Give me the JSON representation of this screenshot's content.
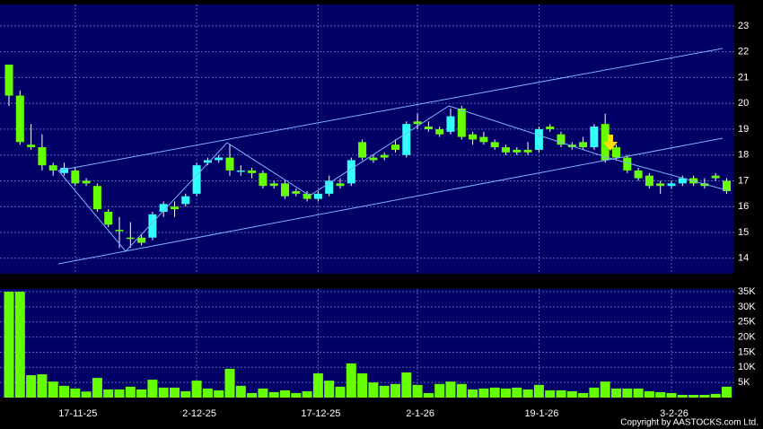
{
  "chart_data": [
    {
      "type": "candlestick",
      "up_color": "#33ffff",
      "down_color": "#66ff00",
      "open": [
        21.5,
        20.3,
        18.4,
        18.3,
        17.6,
        17.3,
        17.4,
        17.0,
        16.8,
        15.8,
        15.1,
        14.8,
        14.8,
        14.8,
        15.8,
        16.0,
        16.1,
        16.5,
        17.7,
        17.8,
        17.9,
        17.4,
        17.4,
        17.3,
        16.9,
        16.9,
        16.6,
        16.5,
        16.3,
        16.5,
        16.9,
        16.9,
        18.5,
        17.9,
        18.0,
        18.4,
        18.0,
        19.3,
        19.1,
        19.0,
        18.9,
        19.8,
        18.8,
        18.7,
        18.5,
        18.3,
        18.2,
        18.2,
        18.2,
        19.1,
        18.8,
        18.4,
        18.5,
        18.3,
        19.2,
        18.3,
        17.9,
        17.4,
        17.2,
        16.9,
        16.8,
        16.9,
        17.1,
        16.9,
        17.2,
        17.0
      ],
      "high": [
        21.5,
        20.5,
        19.2,
        18.8,
        17.7,
        17.7,
        17.5,
        17.1,
        16.9,
        15.9,
        15.6,
        15.4,
        14.9,
        15.8,
        16.2,
        16.2,
        16.5,
        17.7,
        17.9,
        18.0,
        18.4,
        17.6,
        17.5,
        17.4,
        17.0,
        17.0,
        16.7,
        16.6,
        16.6,
        17.2,
        17.1,
        17.9,
        18.6,
        18.0,
        18.1,
        18.6,
        19.3,
        19.6,
        19.3,
        19.1,
        19.8,
        19.9,
        18.9,
        18.9,
        18.6,
        18.4,
        18.3,
        18.5,
        19.1,
        19.2,
        18.9,
        18.5,
        18.7,
        19.2,
        19.6,
        18.4,
        18.0,
        17.5,
        17.3,
        17.0,
        17.0,
        17.2,
        17.2,
        17.1,
        17.3,
        17.1
      ],
      "low": [
        19.9,
        18.4,
        18.2,
        17.4,
        17.2,
        17.2,
        16.8,
        16.8,
        15.8,
        15.2,
        14.4,
        14.4,
        14.5,
        14.7,
        15.6,
        15.6,
        16.0,
        16.4,
        17.6,
        17.7,
        17.2,
        17.2,
        17.1,
        16.7,
        16.7,
        16.3,
        16.4,
        16.2,
        16.2,
        16.4,
        16.7,
        16.8,
        17.8,
        17.7,
        17.8,
        18.1,
        17.9,
        19.0,
        18.9,
        18.7,
        18.8,
        18.6,
        18.4,
        18.4,
        18.2,
        18.0,
        18.0,
        18.0,
        18.1,
        18.9,
        18.3,
        18.2,
        18.2,
        18.2,
        17.7,
        17.8,
        17.3,
        17.0,
        16.7,
        16.5,
        16.7,
        16.8,
        16.8,
        16.7,
        17.0,
        16.5
      ],
      "close": [
        20.3,
        18.5,
        18.3,
        17.6,
        17.4,
        17.5,
        16.9,
        16.9,
        15.9,
        15.3,
        15.05,
        14.75,
        14.6,
        15.7,
        16.1,
        15.9,
        16.4,
        17.6,
        17.8,
        17.9,
        17.4,
        17.4,
        17.3,
        16.8,
        16.8,
        16.4,
        16.5,
        16.3,
        16.5,
        17.0,
        16.8,
        17.8,
        17.9,
        17.8,
        17.9,
        18.2,
        19.2,
        19.2,
        19.0,
        18.8,
        19.5,
        18.7,
        18.6,
        18.5,
        18.3,
        18.1,
        18.1,
        18.1,
        19.0,
        19.0,
        18.4,
        18.3,
        18.3,
        19.1,
        17.8,
        17.9,
        17.4,
        17.1,
        16.8,
        16.8,
        16.9,
        17.1,
        16.9,
        16.8,
        17.1,
        16.6
      ],
      "ylim": [
        13.4,
        23.83
      ],
      "yticks": [
        14,
        15,
        16,
        17,
        18,
        19,
        20,
        21,
        22,
        23
      ],
      "grid": true
    },
    {
      "type": "bar",
      "color": "#66ff00",
      "categories": [
        null,
        null,
        null,
        null,
        null,
        null,
        "17-11-25",
        null,
        null,
        null,
        null,
        null,
        null,
        null,
        null,
        null,
        null,
        "2-12-25",
        null,
        null,
        null,
        null,
        null,
        null,
        null,
        null,
        null,
        null,
        "17-12-25",
        null,
        null,
        null,
        null,
        null,
        null,
        null,
        null,
        "2-1-26",
        null,
        null,
        null,
        null,
        null,
        null,
        null,
        null,
        null,
        null,
        "19-1-26",
        null,
        null,
        null,
        null,
        null,
        null,
        null,
        null,
        null,
        null,
        null,
        "3-2-26",
        null,
        null,
        null,
        null,
        null
      ],
      "values": [
        35000,
        35000,
        7400,
        7700,
        5300,
        3900,
        3000,
        2000,
        6500,
        2700,
        2700,
        3600,
        2700,
        5900,
        3300,
        3300,
        2100,
        5600,
        3000,
        2400,
        9500,
        3900,
        1500,
        3000,
        1800,
        2400,
        1500,
        2100,
        8000,
        5600,
        3600,
        11300,
        8000,
        5000,
        3900,
        4500,
        8300,
        4200,
        1500,
        4500,
        5300,
        4500,
        2700,
        3000,
        3300,
        3000,
        3300,
        2700,
        4200,
        2400,
        2400,
        2100,
        1500,
        3300,
        5300,
        3000,
        3000,
        3000,
        2100,
        1800,
        1500,
        900,
        900,
        900,
        1200,
        3600
      ],
      "ylim": [
        0,
        35900
      ],
      "yticks": [
        {
          "value": 5000,
          "label": "5K"
        },
        {
          "value": 10000,
          "label": "10K"
        },
        {
          "value": 15000,
          "label": "15K"
        },
        {
          "value": 20000,
          "label": "20K"
        },
        {
          "value": 25000,
          "label": "25K"
        },
        {
          "value": 30000,
          "label": "30K"
        },
        {
          "value": 35000,
          "label": "35K"
        }
      ],
      "grid": true,
      "annotation": "Copyright by AASTOCKS.com Ltd."
    }
  ]
}
